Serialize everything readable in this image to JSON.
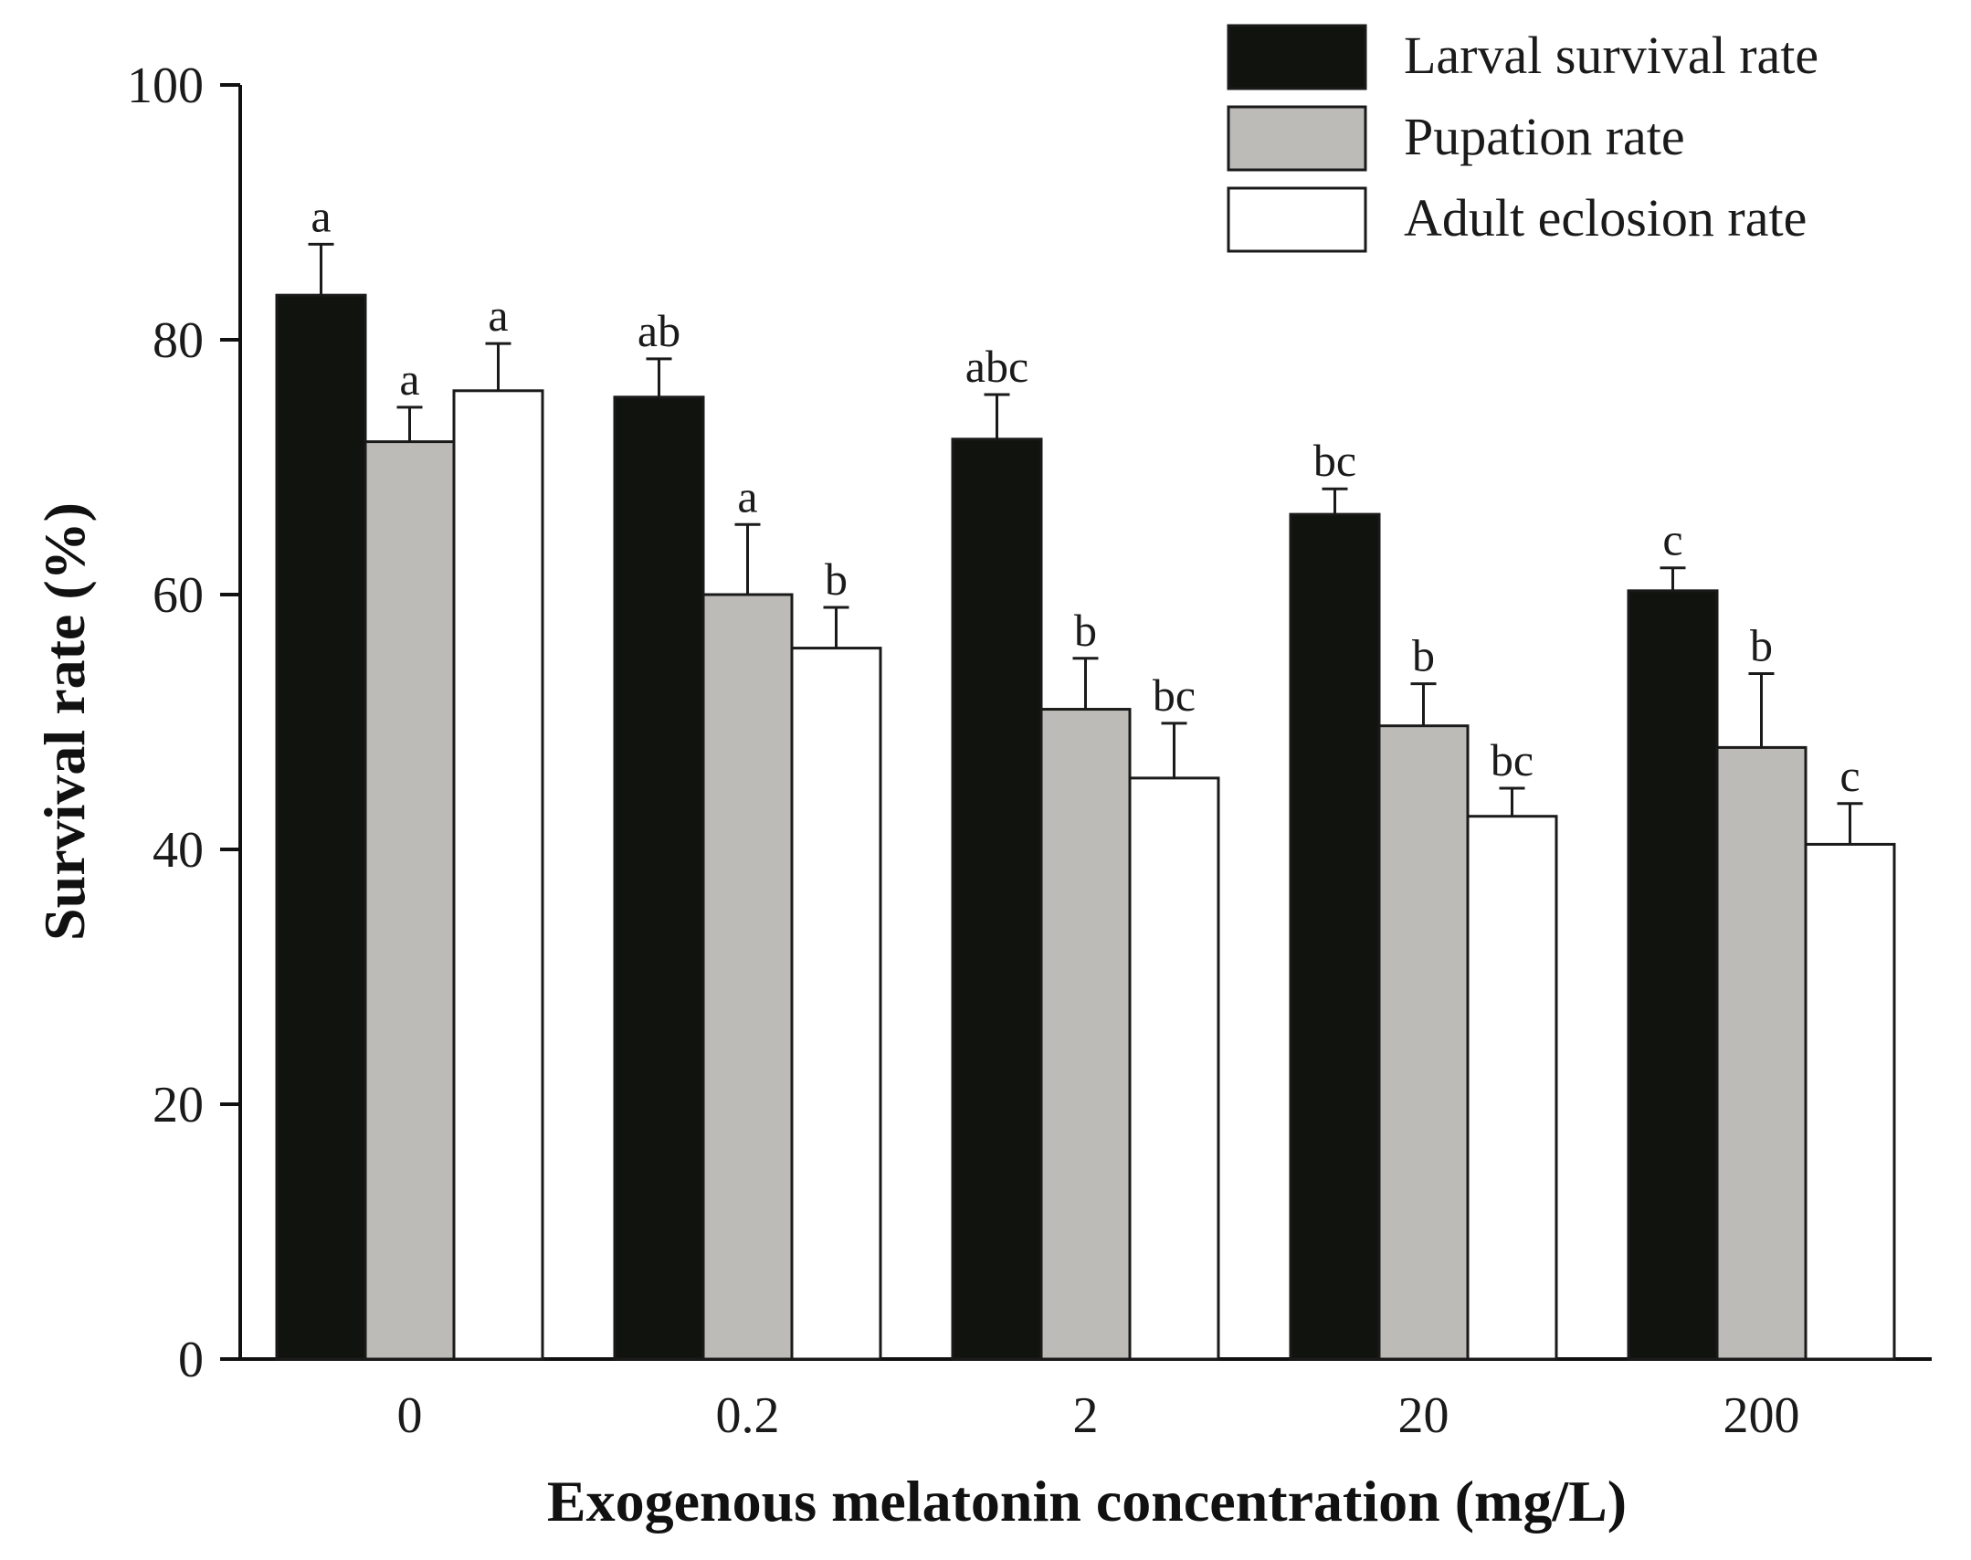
{
  "chart_data": {
    "type": "bar",
    "xlabel": "Exogenous melatonin concentration (mg/L)",
    "ylabel": "Survival rate (%)",
    "ylim": [
      0,
      100
    ],
    "yticks": [
      "0",
      "20",
      "40",
      "60",
      "80",
      "100"
    ],
    "categories": [
      "0",
      "0.2",
      "2",
      "20",
      "200"
    ],
    "series": [
      {
        "name": "Larval survival rate",
        "color": "#11130f",
        "values": [
          83.5,
          75.5,
          72.2,
          66.3,
          60.3
        ],
        "errors": [
          4.0,
          3.0,
          3.5,
          2.0,
          1.8
        ],
        "letters": [
          "a",
          "ab",
          "abc",
          "bc",
          "c"
        ]
      },
      {
        "name": "Pupation rate",
        "color": "#bdbbb8",
        "values": [
          72.0,
          60.0,
          51.0,
          49.7,
          48.0
        ],
        "errors": [
          2.7,
          5.5,
          4.0,
          3.3,
          5.8
        ],
        "letters": [
          "a",
          "a",
          "b",
          "b",
          "b"
        ]
      },
      {
        "name": "Adult eclosion rate",
        "color": "#ffffff",
        "values": [
          76.0,
          55.8,
          45.6,
          42.6,
          40.4
        ],
        "errors": [
          3.7,
          3.2,
          4.3,
          2.2,
          3.2
        ],
        "letters": [
          "a",
          "b",
          "bc",
          "bc",
          "c"
        ]
      }
    ],
    "legend_position": "top-right",
    "grid": false
  }
}
